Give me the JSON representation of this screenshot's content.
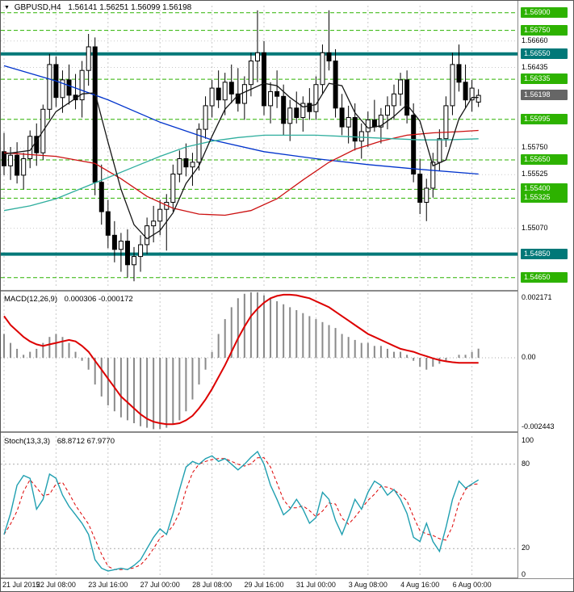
{
  "header": {
    "symbol_period": "GBPUSD,H4",
    "ohlc": "1.56141 1.56251 1.56099 1.56198"
  },
  "colors": {
    "level_green": "#2db200",
    "strong_teal": "#007878",
    "current_badge": "#666666",
    "grid": "#c9c9c9",
    "candle_up_fill": "#ffffff",
    "candle_down_fill": "#000000",
    "candle_border": "#000000",
    "ma_blue": "#0033cc",
    "ma_red": "#cc1111",
    "ma_teal": "#2fae9e",
    "ma_black": "#151515",
    "macd_hist": "#8a8a8a",
    "macd_signal": "#dd0000",
    "stoch_main": "#1f9fb0",
    "stoch_signal": "#dd0000"
  },
  "chart_data": {
    "type": "candlestick+indicators",
    "symbol": "GBPUSD",
    "timeframe": "H4",
    "current": {
      "open": 1.56141,
      "high": 1.56251,
      "low": 1.56099,
      "close": 1.56198
    },
    "x_ticks": [
      {
        "i": 0,
        "label": "21 Jul 2015"
      },
      {
        "i": 8,
        "label": "22 Jul 08:00"
      },
      {
        "i": 16,
        "label": "23 Jul 16:00"
      },
      {
        "i": 24,
        "label": "27 Jul 00:00"
      },
      {
        "i": 32,
        "label": "28 Jul 08:00"
      },
      {
        "i": 40,
        "label": "29 Jul 16:00"
      },
      {
        "i": 48,
        "label": "31 Jul 00:00"
      },
      {
        "i": 56,
        "label": "3 Aug 08:00"
      },
      {
        "i": 64,
        "label": "4 Aug 16:00"
      },
      {
        "i": 72,
        "label": "6 Aug 00:00"
      }
    ],
    "main": {
      "ylim": [
        1.5458,
        1.5696
      ],
      "axis_labels": [
        {
          "text": "1.56900",
          "value": 1.569,
          "kind": "level"
        },
        {
          "text": "1.56750",
          "value": 1.5675,
          "kind": "level"
        },
        {
          "text": "1.56660",
          "value": 1.5666,
          "kind": "grid"
        },
        {
          "text": "1.56550",
          "value": 1.5655,
          "kind": "strong"
        },
        {
          "text": "1.56435",
          "value": 1.56435,
          "kind": "grid"
        },
        {
          "text": "1.56335",
          "value": 1.56335,
          "kind": "level"
        },
        {
          "text": "1.56198",
          "value": 1.56198,
          "kind": "current"
        },
        {
          "text": "1.55995",
          "value": 1.55995,
          "kind": "level"
        },
        {
          "text": "1.55750",
          "value": 1.5575,
          "kind": "grid"
        },
        {
          "text": "1.55650",
          "value": 1.5565,
          "kind": "level"
        },
        {
          "text": "1.55525",
          "value": 1.55525,
          "kind": "grid"
        },
        {
          "text": "1.55400",
          "value": 1.554,
          "kind": "level"
        },
        {
          "text": "1.55325",
          "value": 1.55325,
          "kind": "level"
        },
        {
          "text": "1.55070",
          "value": 1.5507,
          "kind": "grid"
        },
        {
          "text": "1.54850",
          "value": 1.5485,
          "kind": "strong"
        },
        {
          "text": "1.54650",
          "value": 1.5465,
          "kind": "level"
        }
      ],
      "candles": [
        [
          1.5572,
          1.5588,
          1.5552,
          1.556
        ],
        [
          1.556,
          1.5576,
          1.5548,
          1.5569
        ],
        [
          1.5569,
          1.558,
          1.5545,
          1.5552
        ],
        [
          1.5552,
          1.5571,
          1.554,
          1.5566
        ],
        [
          1.5566,
          1.559,
          1.5558,
          1.5585
        ],
        [
          1.5585,
          1.5596,
          1.556,
          1.5571
        ],
        [
          1.5571,
          1.5612,
          1.5565,
          1.5608
        ],
        [
          1.5608,
          1.5655,
          1.56,
          1.5646
        ],
        [
          1.5646,
          1.5653,
          1.561,
          1.5618
        ],
        [
          1.5618,
          1.5641,
          1.5605,
          1.5633
        ],
        [
          1.5633,
          1.5646,
          1.5612,
          1.562
        ],
        [
          1.562,
          1.5638,
          1.5608,
          1.5616
        ],
        [
          1.5616,
          1.5649,
          1.5601,
          1.5641
        ],
        [
          1.5641,
          1.5672,
          1.5628,
          1.5661
        ],
        [
          1.5661,
          1.5669,
          1.5535,
          1.5546
        ],
        [
          1.5546,
          1.5561,
          1.551,
          1.5521
        ],
        [
          1.5521,
          1.5531,
          1.549,
          1.5501
        ],
        [
          1.5501,
          1.5513,
          1.5478,
          1.5489
        ],
        [
          1.5489,
          1.5503,
          1.547,
          1.5496
        ],
        [
          1.5496,
          1.5506,
          1.5465,
          1.5476
        ],
        [
          1.5476,
          1.5491,
          1.5462,
          1.5483
        ],
        [
          1.5483,
          1.5501,
          1.547,
          1.5493
        ],
        [
          1.5493,
          1.5516,
          1.5485,
          1.5509
        ],
        [
          1.5509,
          1.5526,
          1.5495,
          1.5513
        ],
        [
          1.5513,
          1.5531,
          1.5501,
          1.5523
        ],
        [
          1.5523,
          1.5536,
          1.5488,
          1.5529
        ],
        [
          1.5529,
          1.5561,
          1.5521,
          1.5553
        ],
        [
          1.5553,
          1.5573,
          1.5546,
          1.5566
        ],
        [
          1.5566,
          1.5579,
          1.5551,
          1.5559
        ],
        [
          1.5559,
          1.5571,
          1.5543,
          1.5563
        ],
        [
          1.5563,
          1.5596,
          1.5556,
          1.5591
        ],
        [
          1.5591,
          1.5619,
          1.5583,
          1.5611
        ],
        [
          1.5611,
          1.5633,
          1.5601,
          1.5626
        ],
        [
          1.5626,
          1.5641,
          1.5609,
          1.5616
        ],
        [
          1.5616,
          1.5639,
          1.5603,
          1.5631
        ],
        [
          1.5631,
          1.5646,
          1.5613,
          1.5621
        ],
        [
          1.5621,
          1.5643,
          1.5606,
          1.5613
        ],
        [
          1.5613,
          1.5636,
          1.5599,
          1.5629
        ],
        [
          1.5629,
          1.5656,
          1.5619,
          1.5649
        ],
        [
          1.5649,
          1.5692,
          1.5631,
          1.5656
        ],
        [
          1.5656,
          1.5666,
          1.5603,
          1.5611
        ],
        [
          1.5611,
          1.5631,
          1.5596,
          1.5623
        ],
        [
          1.5623,
          1.5641,
          1.5609,
          1.5619
        ],
        [
          1.5619,
          1.5629,
          1.5586,
          1.5596
        ],
        [
          1.5596,
          1.5616,
          1.5581,
          1.5609
        ],
        [
          1.5609,
          1.5623,
          1.5596,
          1.5601
        ],
        [
          1.5601,
          1.5619,
          1.5589,
          1.5613
        ],
        [
          1.5613,
          1.5626,
          1.5599,
          1.5606
        ],
        [
          1.5606,
          1.5636,
          1.5599,
          1.5629
        ],
        [
          1.5629,
          1.5663,
          1.5621,
          1.5656
        ],
        [
          1.5656,
          1.5692,
          1.5641,
          1.5649
        ],
        [
          1.5649,
          1.5659,
          1.5601,
          1.5609
        ],
        [
          1.5609,
          1.5621,
          1.5586,
          1.5593
        ],
        [
          1.5593,
          1.5611,
          1.5579,
          1.5601
        ],
        [
          1.5601,
          1.5613,
          1.5573,
          1.5581
        ],
        [
          1.5581,
          1.5596,
          1.5566,
          1.5589
        ],
        [
          1.5589,
          1.5606,
          1.5576,
          1.5599
        ],
        [
          1.5599,
          1.5616,
          1.5589,
          1.5593
        ],
        [
          1.5593,
          1.5609,
          1.5579,
          1.5603
        ],
        [
          1.5603,
          1.5619,
          1.5591,
          1.5611
        ],
        [
          1.5611,
          1.5629,
          1.5599,
          1.5621
        ],
        [
          1.5621,
          1.5639,
          1.5611,
          1.5633
        ],
        [
          1.5633,
          1.5641,
          1.5596,
          1.5603
        ],
        [
          1.5603,
          1.5613,
          1.5546,
          1.5553
        ],
        [
          1.5553,
          1.5566,
          1.5519,
          1.5529
        ],
        [
          1.5529,
          1.5549,
          1.5513,
          1.5541
        ],
        [
          1.5541,
          1.5571,
          1.5533,
          1.5563
        ],
        [
          1.5563,
          1.5591,
          1.5556,
          1.5583
        ],
        [
          1.5583,
          1.5619,
          1.5576,
          1.5611
        ],
        [
          1.5611,
          1.5656,
          1.5603,
          1.5646
        ],
        [
          1.5646,
          1.5663,
          1.5623,
          1.5631
        ],
        [
          1.5631,
          1.5646,
          1.5609,
          1.5616
        ],
        [
          1.5616,
          1.5633,
          1.5606,
          1.5626
        ],
        [
          1.56141,
          1.56251,
          1.56099,
          1.56198
        ]
      ],
      "moving_averages": [
        {
          "name": "ma-slow-blue",
          "color_key": "ma_blue",
          "points": [
            [
              0,
              1.5645
            ],
            [
              8,
              1.5632
            ],
            [
              16,
              1.5616
            ],
            [
              24,
              1.5597
            ],
            [
              32,
              1.5582
            ],
            [
              40,
              1.5572
            ],
            [
              48,
              1.5566
            ],
            [
              56,
              1.5561
            ],
            [
              64,
              1.5557
            ],
            [
              73,
              1.5553
            ]
          ]
        },
        {
          "name": "ma-medium-red",
          "color_key": "ma_red",
          "points": [
            [
              0,
              1.5571
            ],
            [
              8,
              1.5568
            ],
            [
              14,
              1.5562
            ],
            [
              18,
              1.5549
            ],
            [
              22,
              1.5534
            ],
            [
              26,
              1.5524
            ],
            [
              30,
              1.5519
            ],
            [
              34,
              1.5518
            ],
            [
              38,
              1.5522
            ],
            [
              42,
              1.5532
            ],
            [
              46,
              1.5548
            ],
            [
              50,
              1.5563
            ],
            [
              54,
              1.5574
            ],
            [
              58,
              1.5581
            ],
            [
              62,
              1.5586
            ],
            [
              66,
              1.5588
            ],
            [
              70,
              1.5589
            ],
            [
              73,
              1.559
            ]
          ]
        },
        {
          "name": "ma-teal",
          "color_key": "ma_teal",
          "points": [
            [
              0,
              1.5522
            ],
            [
              4,
              1.5526
            ],
            [
              8,
              1.5532
            ],
            [
              12,
              1.5541
            ],
            [
              16,
              1.555
            ],
            [
              20,
              1.5559
            ],
            [
              24,
              1.5568
            ],
            [
              28,
              1.5576
            ],
            [
              32,
              1.5581
            ],
            [
              36,
              1.5584
            ],
            [
              40,
              1.5586
            ],
            [
              44,
              1.5586
            ],
            [
              48,
              1.5586
            ],
            [
              52,
              1.5585
            ],
            [
              56,
              1.5584
            ],
            [
              60,
              1.5583
            ],
            [
              64,
              1.5582
            ],
            [
              68,
              1.5582
            ],
            [
              73,
              1.5583
            ]
          ]
        },
        {
          "name": "ma-fast-black",
          "color_key": "ma_black",
          "points": [
            [
              0,
              1.557
            ],
            [
              4,
              1.5573
            ],
            [
              8,
              1.5606
            ],
            [
              12,
              1.5621
            ],
            [
              14,
              1.5622
            ],
            [
              16,
              1.558
            ],
            [
              18,
              1.554
            ],
            [
              20,
              1.551
            ],
            [
              22,
              1.5498
            ],
            [
              24,
              1.5505
            ],
            [
              26,
              1.552
            ],
            [
              28,
              1.5545
            ],
            [
              30,
              1.556
            ],
            [
              32,
              1.5585
            ],
            [
              34,
              1.5608
            ],
            [
              36,
              1.562
            ],
            [
              38,
              1.5625
            ],
            [
              40,
              1.563
            ],
            [
              42,
              1.5628
            ],
            [
              44,
              1.5618
            ],
            [
              46,
              1.561
            ],
            [
              48,
              1.5612
            ],
            [
              50,
              1.563
            ],
            [
              52,
              1.5628
            ],
            [
              54,
              1.5605
            ],
            [
              56,
              1.5592
            ],
            [
              58,
              1.5594
            ],
            [
              60,
              1.5602
            ],
            [
              62,
              1.5612
            ],
            [
              64,
              1.5598
            ],
            [
              66,
              1.556
            ],
            [
              68,
              1.5565
            ],
            [
              70,
              1.56
            ],
            [
              72,
              1.5618
            ],
            [
              73,
              1.5618
            ]
          ]
        }
      ]
    },
    "macd": {
      "label": "MACD(12,26,9)",
      "values_text": "0.000306 -0.000172",
      "main_value": 0.000306,
      "signal_value": -0.000172,
      "ylim": [
        -0.002443,
        0.002171
      ],
      "axis_labels": [
        {
          "text": "0.002171",
          "value": 0.002171
        },
        {
          "text": "0.00",
          "value": 0
        },
        {
          "text": "-0.002443",
          "value": -0.002443
        }
      ],
      "scale": 0.0001,
      "histogram": [
        8,
        5,
        3,
        1,
        2,
        3,
        5,
        7,
        8,
        7,
        5,
        2,
        -1,
        -4,
        -9,
        -13,
        -16,
        -18,
        -20,
        -21,
        -22,
        -23,
        -23.5,
        -24,
        -24,
        -23.5,
        -22.5,
        -21,
        -18,
        -14,
        -9,
        -4,
        2,
        8,
        13,
        17,
        20,
        21.5,
        22,
        22,
        21,
        20,
        19,
        18,
        17,
        16,
        15,
        14,
        13,
        12,
        11,
        10,
        8,
        7,
        6,
        5,
        5,
        4,
        4,
        3,
        2,
        2,
        1,
        -1,
        -3,
        -4,
        -3,
        -2,
        -1,
        0,
        1,
        1,
        2,
        3.06
      ],
      "signal": [
        14,
        11,
        9,
        7,
        5.5,
        4.5,
        4,
        4.5,
        5,
        5.5,
        6,
        5.5,
        4,
        2,
        -1,
        -4,
        -7,
        -10,
        -13,
        -15,
        -17,
        -19,
        -20.5,
        -21.5,
        -22,
        -22.3,
        -22.3,
        -22,
        -21,
        -19.5,
        -17,
        -14,
        -10.5,
        -6.5,
        -2.5,
        2,
        6.5,
        10.5,
        14,
        16.5,
        18.5,
        20,
        20.8,
        21.2,
        21.2,
        21,
        20.5,
        20,
        19,
        18,
        17,
        15.5,
        14,
        12.5,
        11,
        9.5,
        8,
        7,
        6,
        5,
        4,
        3,
        2.5,
        2,
        1.2,
        0.5,
        -0.2,
        -0.8,
        -1.2,
        -1.5,
        -1.7,
        -1.72,
        -1.72,
        -1.72
      ]
    },
    "stoch": {
      "label": "Stoch(13,3,3)",
      "values_text": "68.8712 67.9770",
      "k_value": 68.8712,
      "d_value": 67.977,
      "ylim": [
        0,
        100
      ],
      "axis_labels": [
        {
          "text": "100",
          "value": 100
        },
        {
          "text": "80",
          "value": 80
        },
        {
          "text": "20",
          "value": 20
        },
        {
          "text": "0",
          "value": 0
        }
      ],
      "levels": [
        80,
        20
      ],
      "k": [
        30,
        45,
        65,
        72,
        70,
        48,
        55,
        73,
        70,
        58,
        50,
        44,
        38,
        30,
        12,
        6,
        4,
        5,
        6,
        5,
        8,
        12,
        20,
        28,
        34,
        30,
        45,
        62,
        78,
        82,
        80,
        84,
        86,
        82,
        84,
        80,
        76,
        80,
        85,
        89,
        80,
        65,
        55,
        44,
        48,
        55,
        48,
        38,
        42,
        60,
        55,
        40,
        30,
        42,
        55,
        48,
        60,
        68,
        65,
        58,
        62,
        55,
        45,
        28,
        25,
        38,
        25,
        18,
        35,
        55,
        68,
        63,
        66,
        68.87
      ]
    }
  }
}
